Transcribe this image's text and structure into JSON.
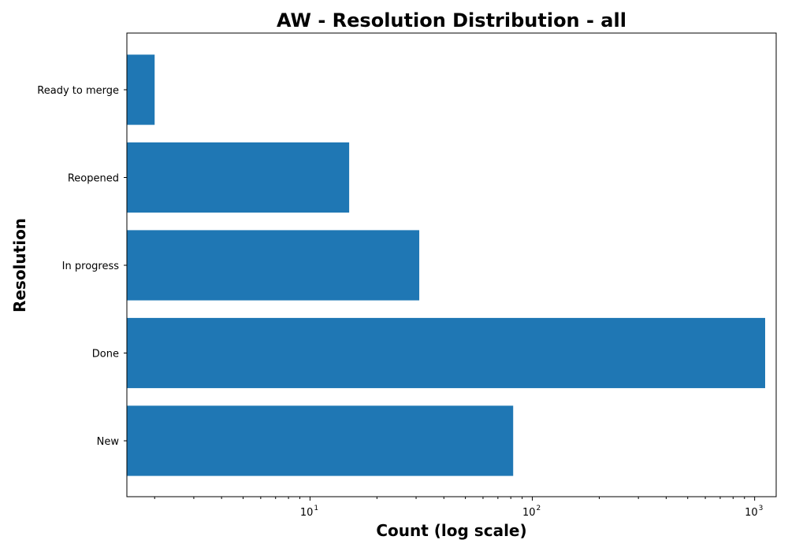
{
  "chart_data": {
    "type": "bar",
    "orientation": "horizontal",
    "title": "AW - Resolution Distribution - all",
    "xlabel": "Count (log scale)",
    "ylabel": "Resolution",
    "x_scale": "log",
    "xlim": [
      1.5,
      1250
    ],
    "x_ticks": [
      {
        "base": "10",
        "exp": "1",
        "value": 10
      },
      {
        "base": "10",
        "exp": "2",
        "value": 100
      },
      {
        "base": "10",
        "exp": "3",
        "value": 1000
      }
    ],
    "categories": [
      "New",
      "Done",
      "In progress",
      "Reopened",
      "Ready to merge"
    ],
    "values": [
      82,
      1115,
      31,
      15,
      2
    ],
    "bar_color": "#1f77b4",
    "grid": false
  }
}
